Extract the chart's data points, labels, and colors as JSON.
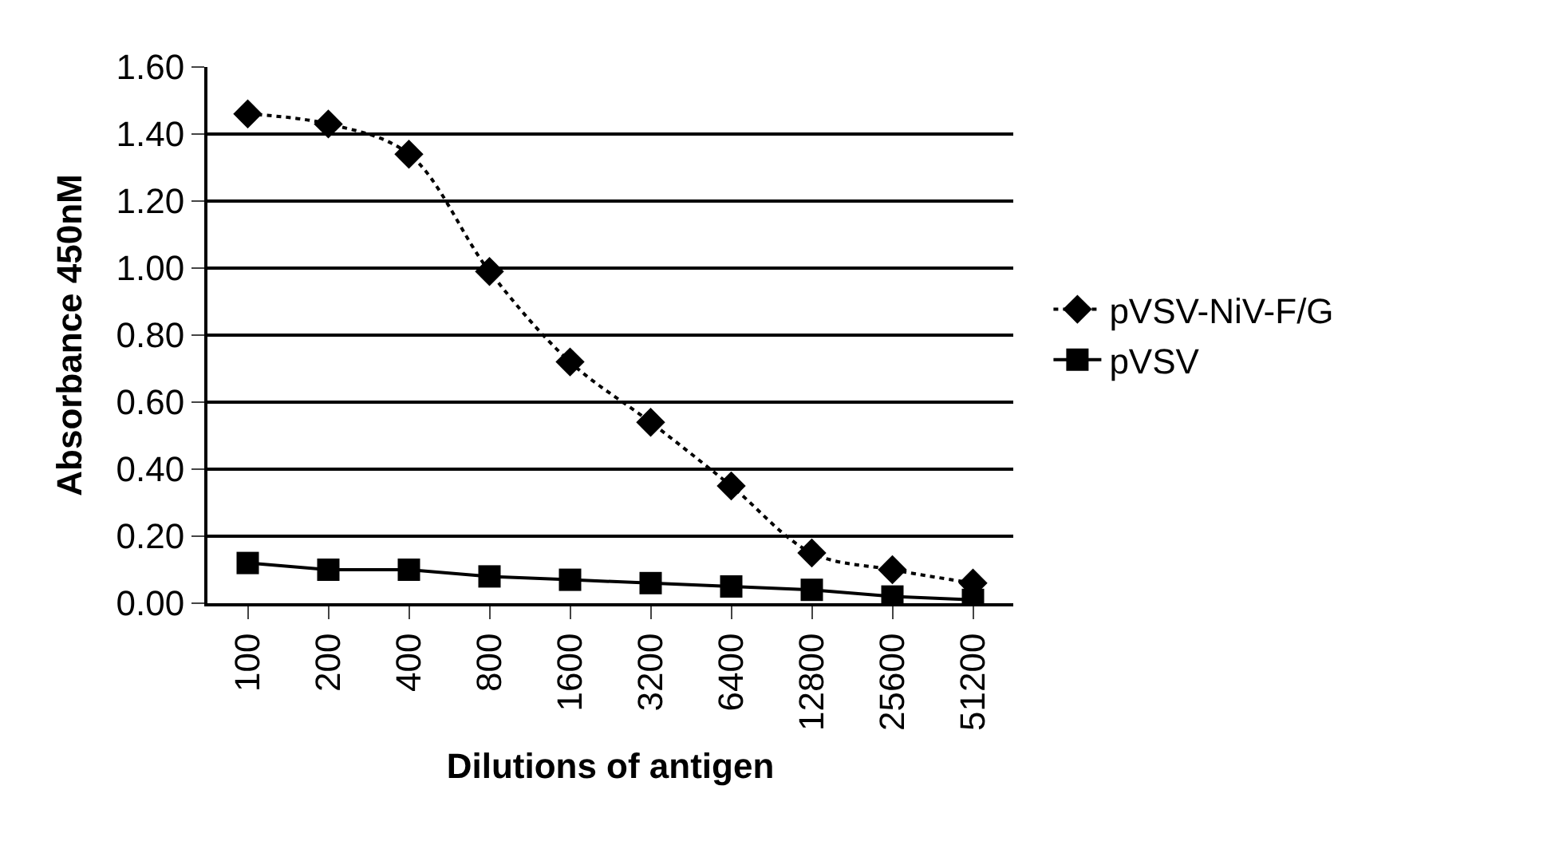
{
  "chart_data": {
    "type": "line",
    "xlabel": "Dilutions of antigen",
    "ylabel": "Absorbance 450nM",
    "categories": [
      "100",
      "200",
      "400",
      "800",
      "1600",
      "3200",
      "6400",
      "12800",
      "25600",
      "51200"
    ],
    "series": [
      {
        "name": "pVSV-NiV-F/G",
        "color": "#000000",
        "marker": "diamond",
        "line_style": "dotted",
        "values": [
          1.46,
          1.43,
          1.34,
          0.99,
          0.72,
          0.54,
          0.35,
          0.15,
          0.1,
          0.06
        ]
      },
      {
        "name": "pVSV",
        "color": "#000000",
        "marker": "square",
        "line_style": "solid",
        "values": [
          0.12,
          0.1,
          0.1,
          0.08,
          0.07,
          0.06,
          0.05,
          0.04,
          0.02,
          0.01
        ]
      }
    ],
    "ylim": [
      0,
      1.6
    ],
    "yticks": [
      {
        "value": 0,
        "label": "0.00"
      },
      {
        "value": 0.2,
        "label": "0.20"
      },
      {
        "value": 0.4,
        "label": "0.40"
      },
      {
        "value": 0.6,
        "label": "0.60"
      },
      {
        "value": 0.8,
        "label": "0.80"
      },
      {
        "value": 1.0,
        "label": "1.00"
      },
      {
        "value": 1.2,
        "label": "1.20"
      },
      {
        "value": 1.4,
        "label": "1.40"
      },
      {
        "value": 1.6,
        "label": "1.60"
      }
    ],
    "grid": "y",
    "legend": "right"
  }
}
